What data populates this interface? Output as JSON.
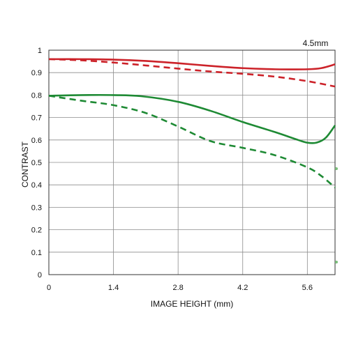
{
  "chart_data": {
    "type": "line",
    "title": "",
    "annotation": "4.5mm",
    "xlabel": "IMAGE HEIGHT (mm)",
    "ylabel": "CONTRAST",
    "xlim": [
      0,
      6.2
    ],
    "ylim": [
      0,
      1
    ],
    "x_ticks": [
      "0",
      "1.4",
      "2.8",
      "4.2",
      "5.6"
    ],
    "x_tick_values": [
      0,
      1.4,
      2.8,
      4.2,
      5.6
    ],
    "y_ticks": [
      "0",
      "0.1",
      "0.2",
      "0.3",
      "0.4",
      "0.5",
      "0.6",
      "0.7",
      "0.8",
      "0.9",
      "1"
    ],
    "y_tick_values": [
      0,
      0.1,
      0.2,
      0.3,
      0.4,
      0.5,
      0.6,
      0.7,
      0.8,
      0.9,
      1
    ],
    "grid": true,
    "series": [
      {
        "color": "#cc2229",
        "dash": "solid",
        "points": [
          [
            0,
            0.96
          ],
          [
            0.7,
            0.96
          ],
          [
            1.4,
            0.958
          ],
          [
            2.1,
            0.952
          ],
          [
            2.8,
            0.942
          ],
          [
            3.5,
            0.93
          ],
          [
            4.2,
            0.92
          ],
          [
            4.9,
            0.915
          ],
          [
            5.6,
            0.915
          ],
          [
            5.9,
            0.92
          ],
          [
            6.2,
            0.937
          ]
        ]
      },
      {
        "color": "#cc2229",
        "dash": "dashed",
        "points": [
          [
            0,
            0.96
          ],
          [
            0.7,
            0.955
          ],
          [
            1.4,
            0.945
          ],
          [
            2.1,
            0.932
          ],
          [
            2.8,
            0.918
          ],
          [
            3.5,
            0.905
          ],
          [
            4.2,
            0.895
          ],
          [
            4.9,
            0.882
          ],
          [
            5.6,
            0.862
          ],
          [
            6.2,
            0.838
          ]
        ]
      },
      {
        "color": "#1e8a34",
        "dash": "solid",
        "points": [
          [
            0,
            0.797
          ],
          [
            0.7,
            0.8
          ],
          [
            1.4,
            0.8
          ],
          [
            2.0,
            0.795
          ],
          [
            2.8,
            0.77
          ],
          [
            3.5,
            0.73
          ],
          [
            4.2,
            0.68
          ],
          [
            4.9,
            0.635
          ],
          [
            5.4,
            0.6
          ],
          [
            5.6,
            0.588
          ],
          [
            5.8,
            0.588
          ],
          [
            6.0,
            0.61
          ],
          [
            6.2,
            0.665
          ]
        ]
      },
      {
        "color": "#1e8a34",
        "dash": "dashed",
        "points": [
          [
            0,
            0.797
          ],
          [
            0.7,
            0.775
          ],
          [
            1.4,
            0.755
          ],
          [
            2.1,
            0.72
          ],
          [
            2.8,
            0.66
          ],
          [
            3.5,
            0.595
          ],
          [
            4.2,
            0.565
          ],
          [
            4.9,
            0.532
          ],
          [
            5.6,
            0.478
          ],
          [
            5.9,
            0.44
          ],
          [
            6.2,
            0.388
          ]
        ]
      }
    ]
  }
}
